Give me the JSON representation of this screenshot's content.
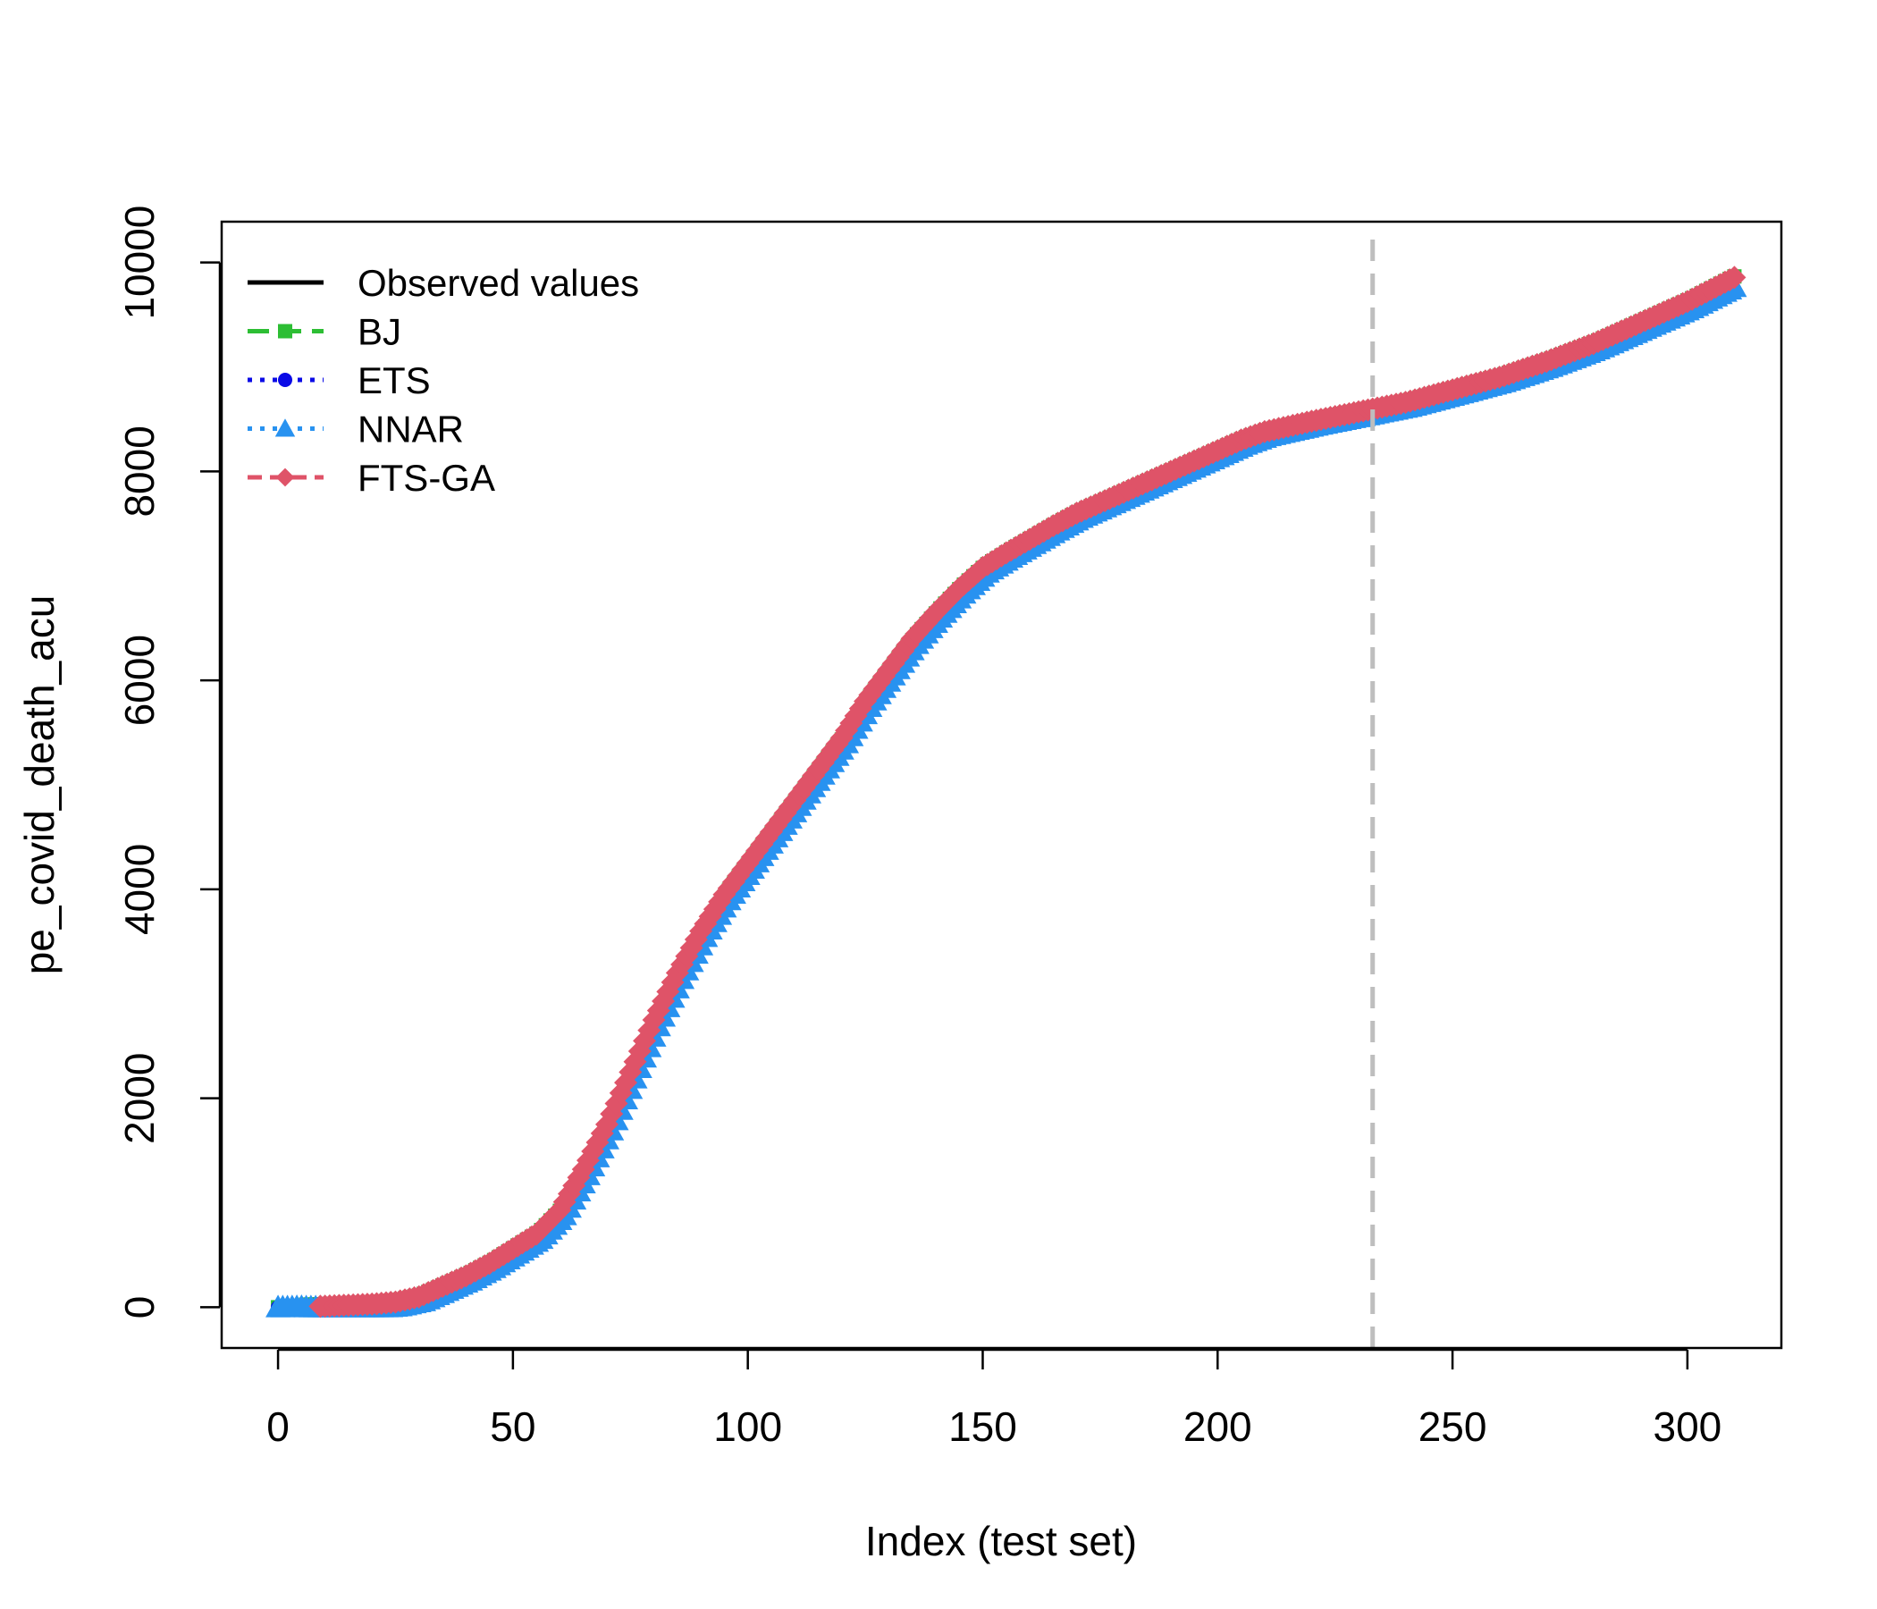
{
  "chart_data": {
    "type": "line",
    "title": "",
    "xlabel": "Index (test set)",
    "ylabel": "pe_covid_death_acu",
    "xlim": [
      -12,
      320
    ],
    "ylim": [
      -390,
      10390
    ],
    "x_ticks": [
      "0",
      "50",
      "100",
      "150",
      "200",
      "250",
      "300"
    ],
    "x_tick_values": [
      0,
      50,
      100,
      150,
      200,
      250,
      300
    ],
    "y_ticks": [
      "0",
      "2000",
      "4000",
      "6000",
      "8000",
      "10000"
    ],
    "y_tick_values": [
      0,
      2000,
      4000,
      6000,
      8000,
      10000
    ],
    "grid": false,
    "legend_position": "top-left",
    "split_line": {
      "x": 233,
      "color": "#BEBEBE",
      "style": "dashed"
    },
    "observed": {
      "x": [
        0,
        10,
        20,
        25,
        30,
        35,
        40,
        45,
        50,
        55,
        60,
        65,
        70,
        75,
        80,
        85,
        90,
        95,
        100,
        105,
        110,
        115,
        120,
        125,
        130,
        135,
        140,
        145,
        150,
        155,
        160,
        165,
        170,
        175,
        180,
        185,
        190,
        195,
        200,
        205,
        210,
        220,
        230,
        240,
        250,
        260,
        270,
        280,
        290,
        300,
        310
      ],
      "y": [
        0,
        10,
        30,
        50,
        100,
        200,
        300,
        420,
        560,
        700,
        930,
        1320,
        1750,
        2250,
        2750,
        3200,
        3600,
        3950,
        4250,
        4550,
        4850,
        5150,
        5450,
        5800,
        6100,
        6400,
        6650,
        6880,
        7080,
        7220,
        7350,
        7480,
        7600,
        7700,
        7800,
        7900,
        8000,
        8100,
        8200,
        8300,
        8380,
        8480,
        8570,
        8660,
        8780,
        8900,
        9050,
        9220,
        9420,
        9620,
        9850
      ]
    },
    "series": [
      {
        "name": "Observed values",
        "color": "#000000",
        "dash": "none",
        "marker": "none",
        "offset_x": 0,
        "offset_y": 0,
        "scale_after_split": 1.0,
        "start_x": 0
      },
      {
        "name": "BJ",
        "color": "#2DBE34",
        "dash": "long-dash",
        "marker": "square",
        "offset_x": 0.6,
        "offset_y": 20,
        "scale_after_split": 1.008,
        "start_x": 0
      },
      {
        "name": "ETS",
        "color": "#0A0AE6",
        "dash": "dotted",
        "marker": "circle",
        "offset_x": 0.3,
        "offset_y": 10,
        "scale_after_split": 1.004,
        "start_x": 0
      },
      {
        "name": "NNAR",
        "color": "#2892F0",
        "dash": "dotted",
        "marker": "triangle",
        "offset_x": 1.2,
        "offset_y": -40,
        "scale_after_split": 0.985,
        "start_x": 0
      },
      {
        "name": "FTS-GA",
        "color": "#DF5368",
        "dash": "dashed",
        "marker": "diamond",
        "offset_x": 0,
        "offset_y": 0,
        "scale_after_split": 1.005,
        "start_x": 9
      }
    ]
  }
}
